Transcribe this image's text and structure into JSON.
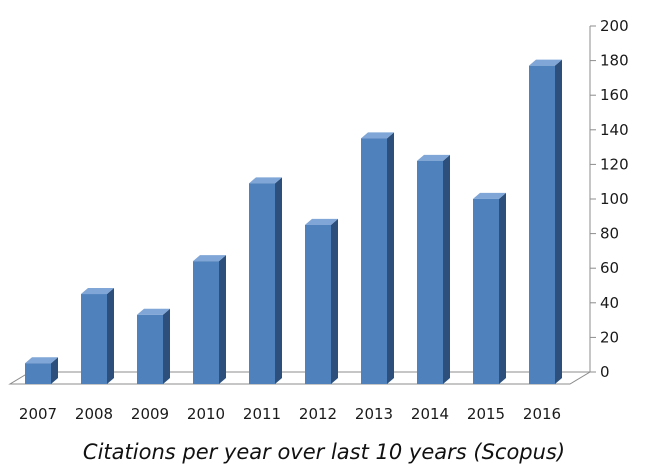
{
  "chart_data": {
    "type": "bar",
    "title": "Citations per year over last 10 years (Scopus)",
    "categories": [
      "2007",
      "2008",
      "2009",
      "2010",
      "2011",
      "2012",
      "2013",
      "2014",
      "2015",
      "2016"
    ],
    "values": [
      12,
      52,
      40,
      71,
      116,
      92,
      142,
      129,
      107,
      184
    ],
    "ylim": [
      0,
      200
    ],
    "y_ticks": [
      0,
      20,
      40,
      60,
      80,
      100,
      120,
      140,
      160,
      180,
      200
    ],
    "y_axis_position": "right",
    "grid": false,
    "legend": "none",
    "style": "3d-column",
    "colors": {
      "bar_front": "#4f81bd",
      "bar_side": "#2c4f7c",
      "bar_top": "#7fa6d6",
      "axis": "#8c8c8c"
    }
  }
}
